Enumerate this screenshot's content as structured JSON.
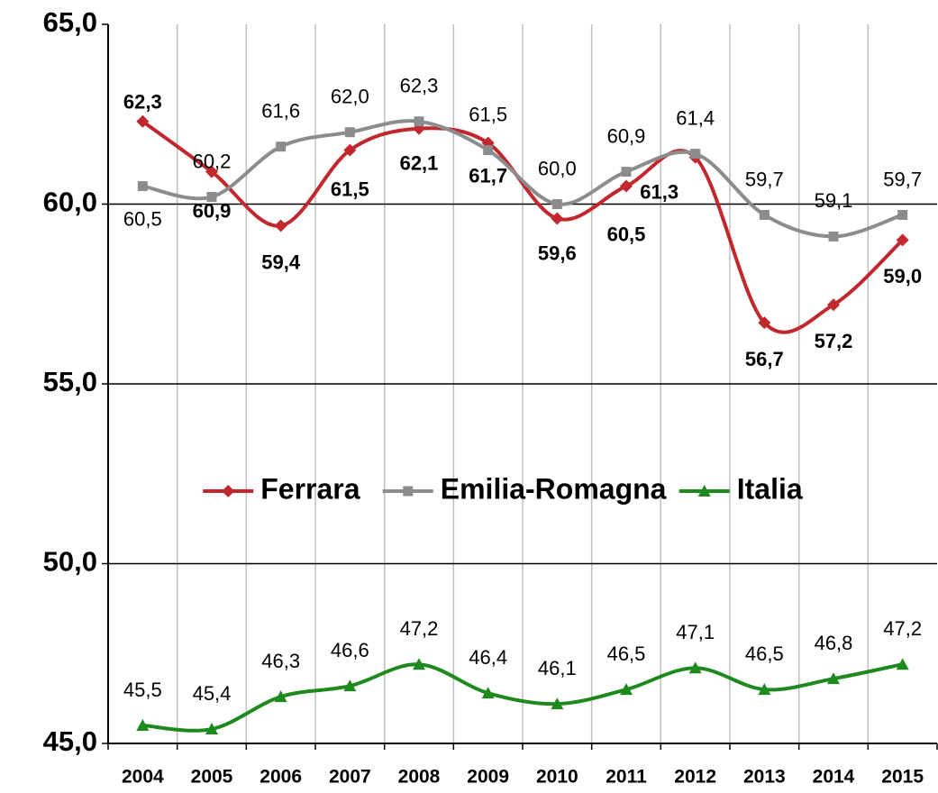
{
  "chart_data": {
    "type": "line",
    "categories": [
      "2004",
      "2005",
      "2006",
      "2007",
      "2008",
      "2009",
      "2010",
      "2011",
      "2012",
      "2013",
      "2014",
      "2015"
    ],
    "series": [
      {
        "name": "Ferrara",
        "color": "#c1272d",
        "marker": "diamond",
        "bold_labels": true,
        "values": [
          62.3,
          60.9,
          59.4,
          61.5,
          62.1,
          61.7,
          59.6,
          60.5,
          61.3,
          56.7,
          57.2,
          59.0
        ],
        "value_labels": [
          "62,3",
          "60,9",
          "59,4",
          "61,5",
          "62,1",
          "61,7",
          "59,6",
          "60,5",
          "61,3",
          "56,7",
          "57,2",
          "59,0"
        ]
      },
      {
        "name": "Emilia-Romagna",
        "color": "#8c8c8c",
        "marker": "square",
        "bold_labels": false,
        "values": [
          60.5,
          60.2,
          61.6,
          62.0,
          62.3,
          61.5,
          60.0,
          60.9,
          61.4,
          59.7,
          59.1,
          59.7
        ],
        "value_labels": [
          "60,5",
          "60,2",
          "61,6",
          "62,0",
          "62,3",
          "61,5",
          "60,0",
          "60,9",
          "61,4",
          "59,7",
          "59,1",
          "59,7"
        ]
      },
      {
        "name": "Italia",
        "color": "#1e8a1e",
        "marker": "triangle",
        "bold_labels": false,
        "values": [
          45.5,
          45.4,
          46.3,
          46.6,
          47.2,
          46.4,
          46.1,
          46.5,
          47.1,
          46.5,
          46.8,
          47.2
        ],
        "value_labels": [
          "45,5",
          "45,4",
          "46,3",
          "46,6",
          "47,2",
          "46,4",
          "46,1",
          "46,5",
          "47,1",
          "46,5",
          "46,8",
          "47,2"
        ]
      }
    ],
    "ylim": [
      45,
      65
    ],
    "yticks": [
      {
        "value": 45,
        "label": "45,0"
      },
      {
        "value": 50,
        "label": "50,0"
      },
      {
        "value": 55,
        "label": "55,0"
      },
      {
        "value": 60,
        "label": "60,0"
      },
      {
        "value": 65,
        "label": "65,0"
      }
    ],
    "grid": true,
    "smooth": true,
    "legend": "center"
  }
}
